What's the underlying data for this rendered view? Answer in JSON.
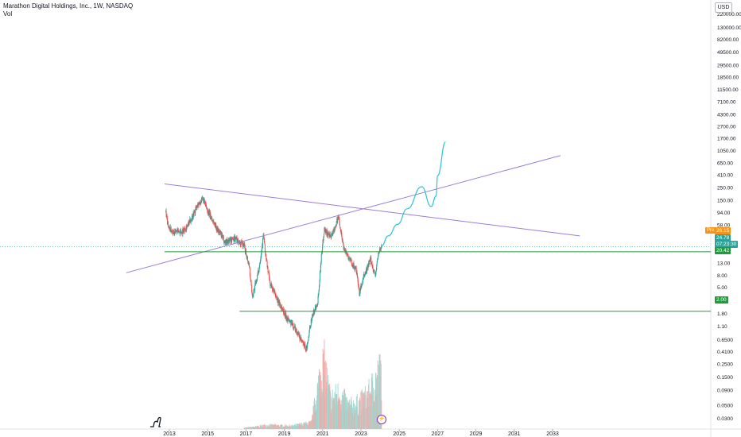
{
  "legend": {
    "title": "Marathon Digital Holdings, Inc., 1W, NASDAQ",
    "indicator": "Vol"
  },
  "currency_button": "USD",
  "pre_label": "Pre",
  "price_badges": {
    "pre_value": "26.15",
    "last_price": "24.78",
    "countdown": "07:23:30",
    "support_upper": "20.42",
    "support_lower": "2.00"
  },
  "colors": {
    "up": "#26a69a",
    "down": "#ef5350",
    "trendline": "#9c7fd6",
    "support": "#1e9e3a",
    "projection": "#29c5d6",
    "pre": "#f7931a"
  },
  "chart_data": {
    "type": "candlestick",
    "title": "Marathon Digital Holdings, Inc., 1W, NASDAQ",
    "y_scale": "log",
    "ylim": [
      0.02,
      300000
    ],
    "xlim": [
      "2012-06",
      "2034-06"
    ],
    "x_ticks": [
      "2013",
      "2015",
      "2017",
      "2019",
      "2021",
      "2023",
      "2025",
      "2027",
      "2029",
      "2031",
      "2033"
    ],
    "y_ticks": [
      "220000.00",
      "130000.00",
      "82000.00",
      "49500.00",
      "29500.00",
      "18500.00",
      "11500.00",
      "7100.00",
      "4300.00",
      "2700.00",
      "1700.00",
      "1050.00",
      "650.00",
      "410.00",
      "250.00",
      "150.00",
      "94.00",
      "58.00",
      "36.00",
      "22.00",
      "13.00",
      "8.00",
      "5.00",
      "3.00",
      "1.80",
      "1.10",
      "0.6500",
      "0.4100",
      "0.2500",
      "0.1500",
      "0.0900",
      "0.0500",
      "0.0300"
    ],
    "price_path": [
      [
        "2012-10",
        240
      ],
      [
        "2012-11",
        80
      ],
      [
        "2013-01",
        50
      ],
      [
        "2013-04",
        45
      ],
      [
        "2013-09",
        45
      ],
      [
        "2014-01",
        60
      ],
      [
        "2014-07",
        130
      ],
      [
        "2014-10",
        160
      ],
      [
        "2015-01",
        100
      ],
      [
        "2015-07",
        50
      ],
      [
        "2015-12",
        30
      ],
      [
        "2016-06",
        35
      ],
      [
        "2016-12",
        25
      ],
      [
        "2017-03",
        12
      ],
      [
        "2017-05",
        3.5
      ],
      [
        "2017-09",
        10
      ],
      [
        "2017-12",
        40
      ],
      [
        "2018-01",
        20
      ],
      [
        "2018-04",
        6
      ],
      [
        "2018-09",
        3
      ],
      [
        "2019-03",
        1.5
      ],
      [
        "2019-08",
        1.0
      ],
      [
        "2019-12",
        0.6
      ],
      [
        "2020-03",
        0.45
      ],
      [
        "2020-06",
        1.5
      ],
      [
        "2020-10",
        3
      ],
      [
        "2020-12",
        15
      ],
      [
        "2021-02",
        50
      ],
      [
        "2021-06",
        35
      ],
      [
        "2021-11",
        80
      ],
      [
        "2022-02",
        25
      ],
      [
        "2022-06",
        15
      ],
      [
        "2022-10",
        10
      ],
      [
        "2022-12",
        4
      ],
      [
        "2023-03",
        8
      ],
      [
        "2023-07",
        15
      ],
      [
        "2023-10",
        8
      ],
      [
        "2023-12",
        20
      ],
      [
        "2024-02",
        24.78
      ]
    ],
    "projection": [
      [
        "2024-02",
        26
      ],
      [
        "2024-06",
        38
      ],
      [
        "2024-12",
        60
      ],
      [
        "2025-06",
        110
      ],
      [
        "2026-03",
        260
      ],
      [
        "2026-09",
        120
      ],
      [
        "2026-12",
        180
      ],
      [
        "2027-01",
        400
      ],
      [
        "2027-06",
        1500
      ]
    ],
    "trendlines": [
      {
        "name": "descending",
        "from": [
          "2012-10",
          290
        ],
        "to": [
          "2034-06",
          38
        ]
      },
      {
        "name": "ascending",
        "from": [
          "2010-10",
          9
        ],
        "to": [
          "2033-06",
          880
        ]
      }
    ],
    "support_lines": [
      {
        "value": 20.42,
        "from": "2012-10"
      },
      {
        "value": 2.0,
        "from": "2016-09"
      }
    ],
    "volume": {
      "note": "relative weekly volume, max = 1",
      "series": [
        [
          "2017-01",
          0.02
        ],
        [
          "2017-09",
          0.04
        ],
        [
          "2018-01",
          0.06
        ],
        [
          "2019-06",
          0.05
        ],
        [
          "2020-06",
          0.1
        ],
        [
          "2020-12",
          0.9
        ],
        [
          "2021-02",
          1.0
        ],
        [
          "2021-06",
          0.45
        ],
        [
          "2021-11",
          0.55
        ],
        [
          "2022-06",
          0.35
        ],
        [
          "2022-12",
          0.4
        ],
        [
          "2023-06",
          0.55
        ],
        [
          "2023-12",
          0.85
        ],
        [
          "2024-02",
          0.9
        ]
      ]
    }
  }
}
